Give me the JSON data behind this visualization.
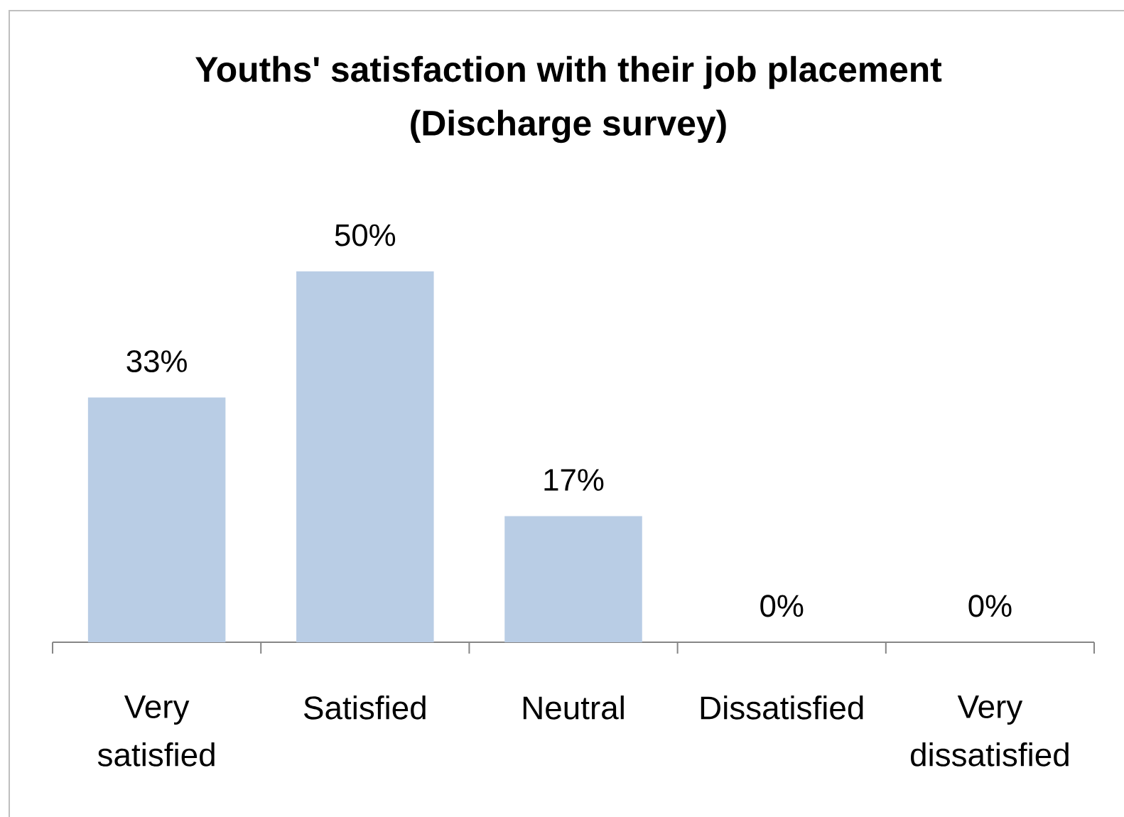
{
  "chart_data": {
    "type": "bar",
    "title": "Youths' satisfaction with their job placement (Discharge survey)",
    "categories": [
      "Very satisfied",
      "Satisfied",
      "Neutral",
      "Dissatisfied",
      "Very dissatisfied"
    ],
    "values": [
      33,
      50,
      17,
      0,
      0
    ],
    "value_labels": [
      "33%",
      "50%",
      "17%",
      "0%",
      "0%"
    ],
    "color": "#b9cde5"
  }
}
